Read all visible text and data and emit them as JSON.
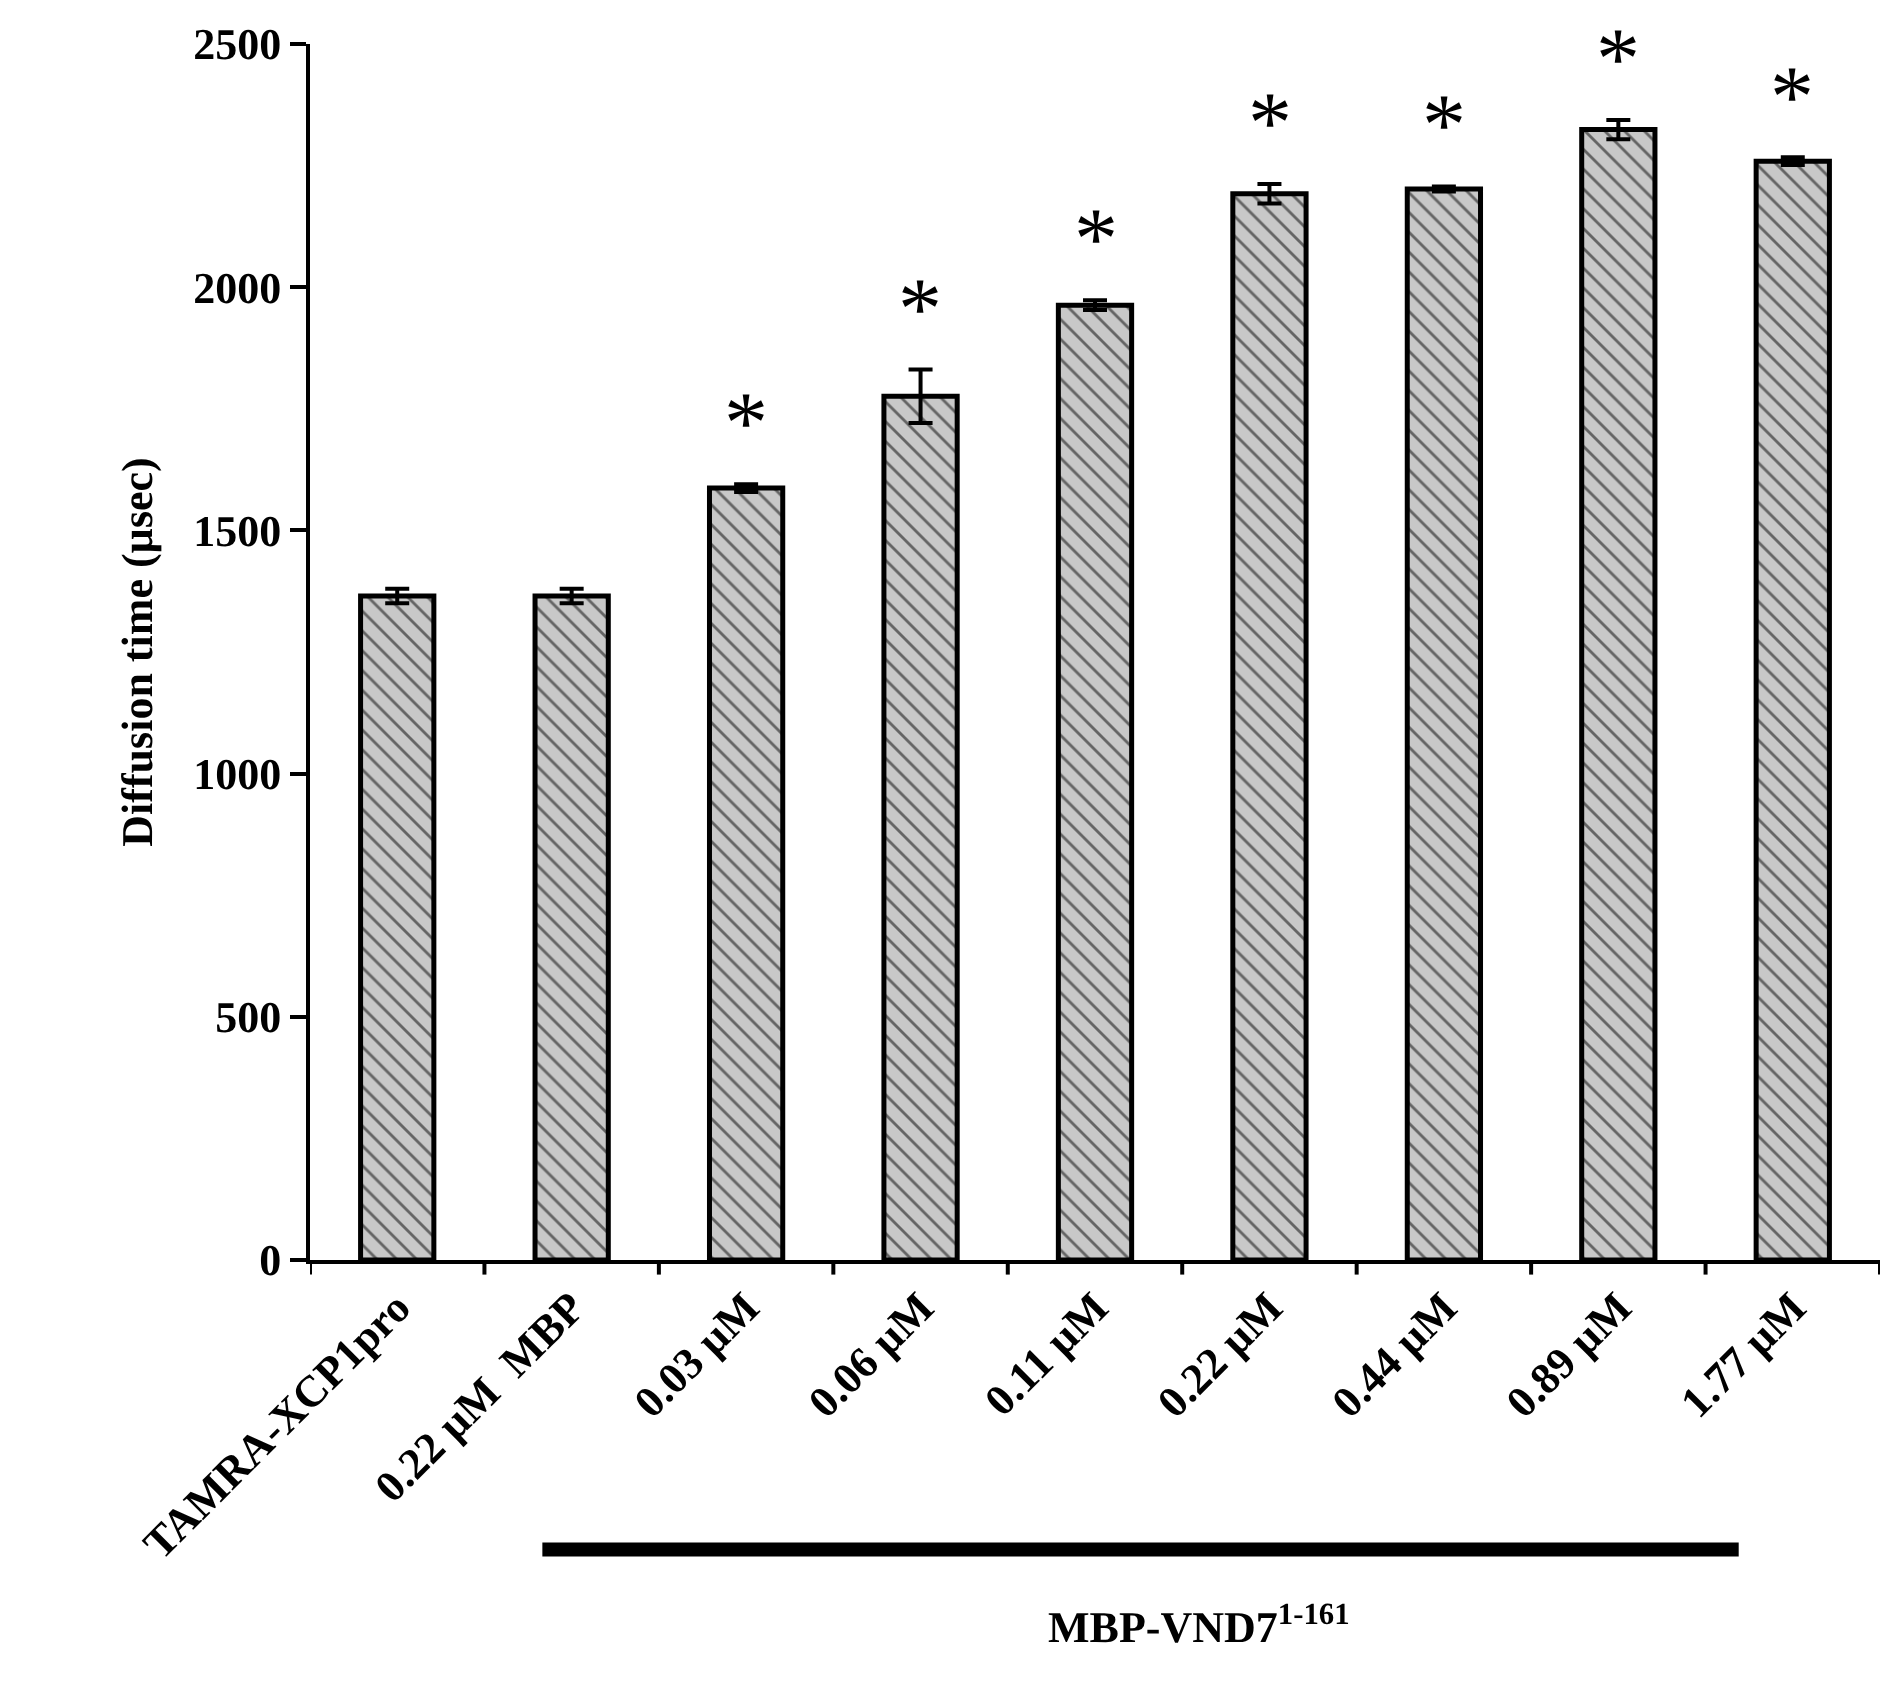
{
  "chart_data": {
    "type": "bar",
    "ylabel": "Diffusion time (µsec)",
    "categories": [
      "TAMRA-XCP1pro",
      "0.22 µM  MBP",
      "0.03 µM",
      "0.06 µM",
      "0.11 µM",
      "0.22 µM",
      "0.44 µM",
      "0.89 µM",
      "1.77 µM"
    ],
    "values": [
      1365,
      1365,
      1587,
      1776,
      1963,
      2192,
      2202,
      2324,
      2259
    ],
    "errors": [
      15,
      15,
      8,
      55,
      10,
      20,
      5,
      20,
      8
    ],
    "color": "#c8c8c8",
    "ylim": [
      0,
      2500
    ],
    "yticks": [
      0,
      500,
      1000,
      1500,
      2000,
      2500
    ],
    "annotations": [
      {
        "text": "*",
        "x": "0.03 µM",
        "y": 1587
      },
      {
        "text": "*",
        "x": "0.06 µM",
        "y": 1776
      },
      {
        "text": "*",
        "x": "0.11 µM",
        "y": 1963
      },
      {
        "text": "*",
        "x": "0.22 µM",
        "y": 2192
      },
      {
        "text": "*",
        "x": "0.44 µM",
        "y": 2202
      },
      {
        "text": "*",
        "x": "0.89 µM",
        "y": 2324
      },
      {
        "text": "*",
        "x": "1.77 µM",
        "y": 2259
      },
      "MBP-VND7$^{1-161}$"
    ]
  }
}
